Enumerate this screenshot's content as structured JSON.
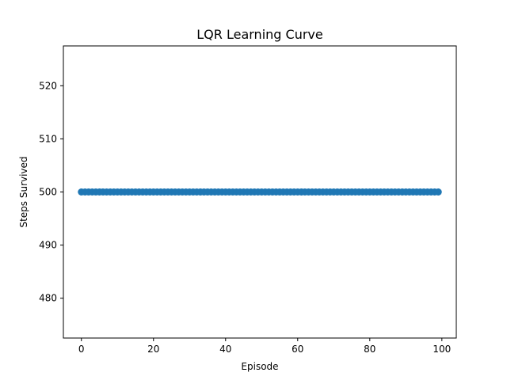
{
  "chart_data": {
    "type": "scatter",
    "title": "LQR Learning Curve",
    "xlabel": "Episode",
    "ylabel": "Steps Survived",
    "xlim": [
      -5,
      104
    ],
    "ylim": [
      472.5,
      527.5
    ],
    "xticks": [
      0,
      20,
      40,
      60,
      80,
      100
    ],
    "yticks": [
      480,
      490,
      500,
      510,
      520
    ],
    "x_start": 0,
    "x_end": 99,
    "y_value": 500,
    "marker_color": "#1f77b4",
    "grid": false
  }
}
